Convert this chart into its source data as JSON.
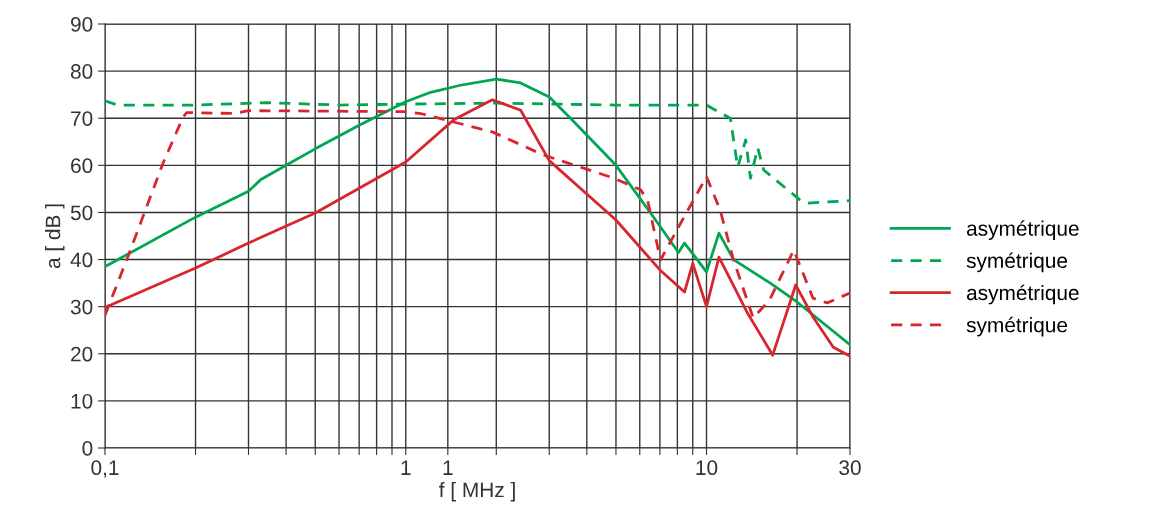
{
  "chart_data": {
    "type": "line",
    "xlabel": "f [ MHz ]",
    "ylabel": "a [ dB ]",
    "log": "x",
    "xlim": [
      0.1,
      30
    ],
    "ylim": [
      0,
      90
    ],
    "xticks": [
      {
        "value": 0.1,
        "label": "0,1"
      },
      {
        "value": 0.2,
        "label": null
      },
      {
        "value": 0.3,
        "label": null
      },
      {
        "value": 0.4,
        "label": null
      },
      {
        "value": 0.5,
        "label": null
      },
      {
        "value": 0.6,
        "label": null
      },
      {
        "value": 0.7,
        "label": null
      },
      {
        "value": 0.8,
        "label": null
      },
      {
        "value": 0.9,
        "label": null
      },
      1,
      {
        "value": 1.38,
        "label": "1"
      },
      {
        "value": 2,
        "label": null
      },
      {
        "value": 3,
        "label": null
      },
      {
        "value": 4,
        "label": null
      },
      {
        "value": 5,
        "label": null
      },
      {
        "value": 6,
        "label": null
      },
      {
        "value": 7,
        "label": null
      },
      {
        "value": 8,
        "label": null
      },
      {
        "value": 9,
        "label": null
      },
      10,
      {
        "value": 20,
        "label": null
      },
      30
    ],
    "yticks": [
      0,
      10,
      20,
      30,
      40,
      50,
      60,
      70,
      80,
      90
    ],
    "grid": true,
    "legend": "right",
    "series": [
      {
        "name": "asymétrique",
        "color": "#00a651",
        "line_style": "solid",
        "x": [
          0.1,
          0.2,
          0.3,
          0.33,
          0.4,
          0.5,
          0.7,
          0.9,
          1,
          1.21,
          1.52,
          2,
          2.41,
          3,
          3.53,
          5,
          6.5,
          8.07,
          8.45,
          10,
          11,
          12.3,
          16.3,
          20,
          30
        ],
        "values": [
          38.5,
          49,
          54.5,
          57,
          60,
          63.5,
          68.5,
          72,
          73.5,
          75.5,
          77,
          78.3,
          77.5,
          74.5,
          70,
          60,
          50,
          41.5,
          43.5,
          37.4,
          45.6,
          40,
          35,
          31,
          21.9
        ]
      },
      {
        "name": "symétrique",
        "color": "#00a651",
        "line_style": "dashed",
        "x": [
          0.1,
          0.11,
          0.2,
          0.35,
          0.6,
          1,
          2,
          5,
          10,
          10.5,
          12,
          12.7,
          13.5,
          14,
          14.8,
          15.5,
          20.5,
          21.8,
          30
        ],
        "values": [
          73.7,
          72.8,
          72.8,
          73.3,
          72.8,
          73,
          73.2,
          72.8,
          72.8,
          72,
          70,
          59.6,
          65.4,
          57.3,
          63.7,
          59,
          52.6,
          52,
          52.5
        ]
      },
      {
        "name": "asymétrique",
        "color": "#d7262e",
        "line_style": "solid",
        "x": [
          0.1,
          0.2,
          0.3,
          0.5,
          1,
          1.44,
          1.94,
          2.41,
          3,
          5,
          7,
          8.45,
          9,
          10,
          11,
          13.7,
          16.6,
          19.8,
          22.6,
          26.4,
          30
        ],
        "values": [
          29.8,
          38.2,
          43.5,
          49.9,
          60.7,
          69.6,
          73.9,
          71.7,
          61,
          48.4,
          37.8,
          33.1,
          39.2,
          30,
          40.5,
          28.6,
          19.7,
          34.6,
          27.8,
          21.4,
          19.5
        ]
      },
      {
        "name": "symétrique",
        "color": "#d7262e",
        "line_style": "dashed",
        "x": [
          0.1,
          0.119,
          0.156,
          0.182,
          0.187,
          0.268,
          0.3,
          1,
          1.12,
          1.94,
          2.87,
          4.91,
          6.04,
          6.37,
          7.03,
          8.2,
          10,
          11.1,
          12.3,
          14.3,
          16.2,
          19.5,
          22.6,
          25.2,
          30
        ],
        "values": [
          28.2,
          40.5,
          60.5,
          70.3,
          71.2,
          71,
          71.6,
          71.4,
          71,
          67.1,
          62.2,
          57.3,
          54.8,
          52.6,
          39.9,
          47.7,
          57.6,
          50.5,
          39.9,
          27.6,
          31.4,
          42,
          31.8,
          30.8,
          32.9
        ]
      }
    ]
  }
}
